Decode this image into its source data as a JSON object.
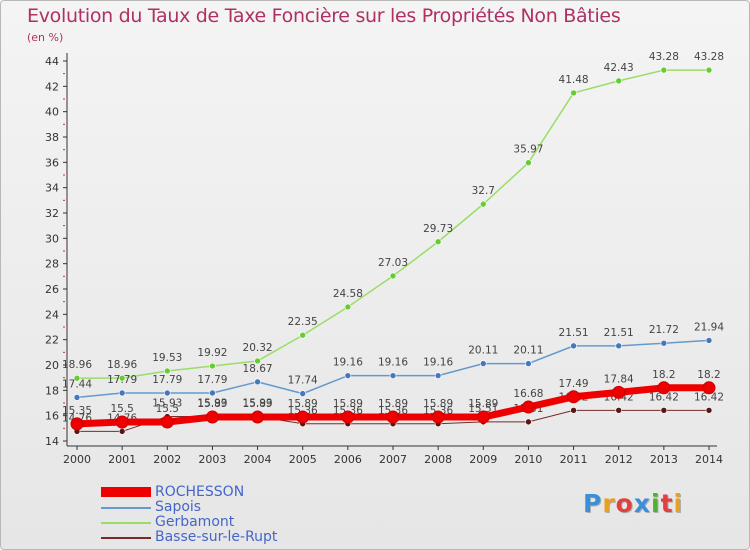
{
  "header": {
    "title": "Evolution du Taux de Taxe Foncière sur les Propriétés Non Bâties",
    "unit": "(en %)"
  },
  "brand": {
    "text": "Proxiti",
    "colors": [
      "#3a8fd8",
      "#e8a020",
      "#e04040",
      "#3a8fd8",
      "#50b030",
      "#e04040",
      "#e8a020"
    ]
  },
  "colors": {
    "title": "#b03064",
    "axis": "#333333",
    "grid_tick": "#cc3333"
  },
  "chart_data": {
    "type": "line",
    "title": "Evolution du Taux de Taxe Foncière sur les Propriétés Non Bâties",
    "ylabel": "(en %)",
    "xlabel": "",
    "x": [
      "2000",
      "2001",
      "2002",
      "2003",
      "2004",
      "2005",
      "2006",
      "2007",
      "2008",
      "2009",
      "2010",
      "2011",
      "2012",
      "2013",
      "2014"
    ],
    "ylim": [
      14,
      44
    ],
    "yticks": [
      14,
      16,
      18,
      20,
      22,
      24,
      26,
      28,
      30,
      32,
      34,
      36,
      38,
      40,
      42,
      44
    ],
    "legend_position": "bottom-left",
    "series": [
      {
        "name": "Basse-sur-le-Rupt",
        "color": "#7a2a2a",
        "marker": "#5a1515",
        "width": 1,
        "values": [
          14.76,
          14.76,
          15.93,
          15.93,
          15.93,
          15.36,
          15.36,
          15.36,
          15.36,
          15.51,
          15.51,
          16.42,
          16.42,
          16.42,
          16.42
        ],
        "labels": [
          "14.76",
          "14.76",
          "15.93",
          "15.93",
          "15.93",
          "15.36",
          "15.36",
          "15.36",
          "15.36",
          "15.51",
          "15.51",
          "16.42",
          "16.42",
          "16.42",
          "16.42"
        ]
      },
      {
        "name": "Gerbamont",
        "color": "#99dd66",
        "marker": "#66cc33",
        "width": 1.5,
        "values": [
          18.96,
          18.96,
          19.53,
          19.92,
          20.32,
          22.35,
          24.58,
          27.03,
          29.73,
          32.7,
          35.97,
          41.48,
          42.43,
          43.28,
          43.28
        ],
        "labels": [
          "18.96",
          "18.96",
          "19.53",
          "19.92",
          "20.32",
          "22.35",
          "24.58",
          "27.03",
          "29.73",
          "32.7",
          "35.97",
          "41.48",
          "42.43",
          "43.28",
          "43.28"
        ]
      },
      {
        "name": "Sapois",
        "color": "#6699cc",
        "marker": "#4477bb",
        "width": 1.5,
        "values": [
          17.44,
          17.79,
          17.79,
          17.79,
          18.67,
          17.74,
          19.16,
          19.16,
          19.16,
          20.11,
          20.11,
          21.51,
          21.51,
          21.72,
          21.94
        ],
        "labels": [
          "17.44",
          "17.79",
          "17.79",
          "17.79",
          "18.67",
          "17.74",
          "19.16",
          "19.16",
          "19.16",
          "20.11",
          "20.11",
          "21.51",
          "21.51",
          "21.72",
          "21.94"
        ]
      },
      {
        "name": "ROCHESSON",
        "color": "#ee0000",
        "marker": "#ee0000",
        "width": 7,
        "values": [
          15.35,
          15.5,
          15.5,
          15.89,
          15.89,
          15.89,
          15.89,
          15.89,
          15.89,
          15.89,
          16.68,
          17.49,
          17.84,
          18.2,
          18.2
        ],
        "labels": [
          "15.35",
          "15.5",
          "15.5",
          "15.89",
          "15.89",
          "15.89",
          "15.89",
          "15.89",
          "15.89",
          "15.89",
          "16.68",
          "17.49",
          "17.84",
          "18.2",
          "18.2"
        ]
      }
    ],
    "legend": [
      "ROCHESSON",
      "Sapois",
      "Gerbamont",
      "Basse-sur-le-Rupt"
    ]
  }
}
